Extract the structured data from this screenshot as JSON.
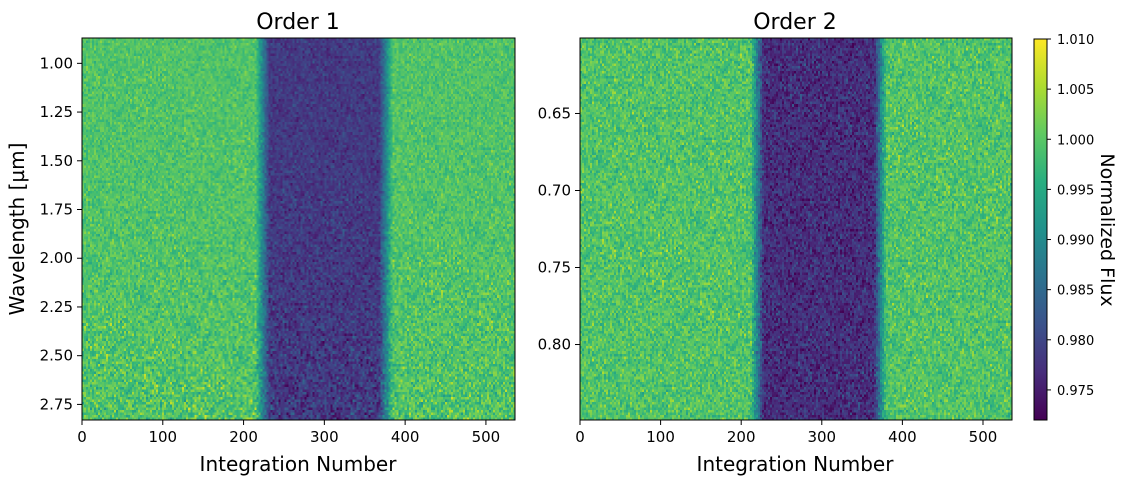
{
  "chart_data": [
    {
      "type": "heatmap",
      "title": "Order 1",
      "xlabel": "Integration Number",
      "ylabel": "Wavelength [µm]",
      "xlim": [
        0,
        536
      ],
      "ylim": [
        2.83,
        0.87
      ],
      "y_inverted": true,
      "x_ticks": [
        0,
        100,
        200,
        300,
        400,
        500
      ],
      "x_tick_labels": [
        "0",
        "100",
        "200",
        "300",
        "400",
        "500"
      ],
      "y_ticks": [
        1.0,
        1.25,
        1.5,
        1.75,
        2.0,
        2.25,
        2.5,
        2.75
      ],
      "y_tick_labels": [
        "1.00",
        "1.25",
        "1.50",
        "1.75",
        "2.00",
        "2.25",
        "2.50",
        "2.75"
      ],
      "transit_start": 215,
      "transit_end": 385,
      "ingress_end": 232,
      "egress_start": 368,
      "in_transit_flux": 0.9785,
      "out_of_transit_flux": 0.9995,
      "noise_level": "increasing toward longer wavelength"
    },
    {
      "type": "heatmap",
      "title": "Order 2",
      "xlabel": "Integration Number",
      "ylabel": "",
      "xlim": [
        0,
        536
      ],
      "ylim": [
        0.849,
        0.601
      ],
      "y_inverted": true,
      "x_ticks": [
        0,
        100,
        200,
        300,
        400,
        500
      ],
      "x_tick_labels": [
        "0",
        "100",
        "200",
        "300",
        "400",
        "500"
      ],
      "y_ticks": [
        0.65,
        0.7,
        0.75,
        0.8
      ],
      "y_tick_labels": [
        "0.65",
        "0.70",
        "0.75",
        "0.80"
      ],
      "transit_start": 212,
      "transit_end": 380,
      "ingress_end": 228,
      "egress_start": 365,
      "in_transit_flux": 0.977,
      "out_of_transit_flux": 0.9995,
      "noise_level": "high"
    }
  ],
  "colorbar": {
    "label": "Normalized Flux",
    "colormap": "viridis",
    "range": [
      0.972,
      1.01
    ],
    "ticks": [
      0.975,
      0.98,
      0.985,
      0.99,
      0.995,
      1.0,
      1.005,
      1.01
    ],
    "tick_labels": [
      "0.975",
      "0.980",
      "0.985",
      "0.990",
      "0.995",
      "1.000",
      "1.005",
      "1.010"
    ]
  }
}
